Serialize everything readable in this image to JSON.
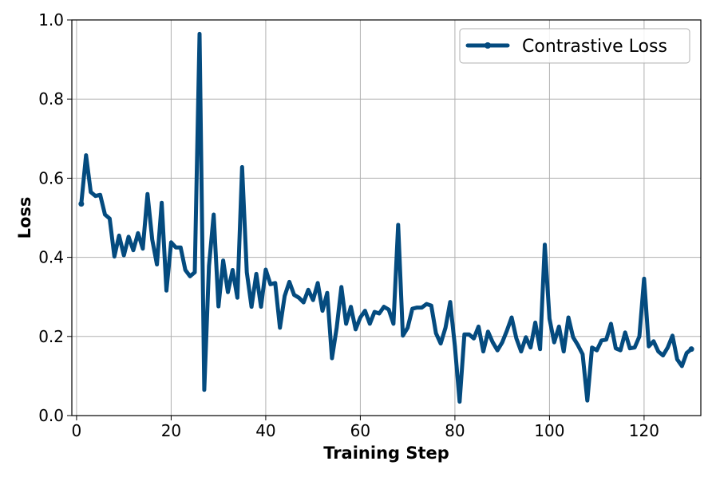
{
  "chart_data": {
    "type": "line",
    "title": "",
    "xlabel": "Training Step",
    "ylabel": "Loss",
    "xlim": [
      -1,
      132
    ],
    "ylim": [
      0,
      1.0
    ],
    "xticks": [
      0,
      20,
      40,
      60,
      80,
      100,
      120
    ],
    "yticks": [
      0.0,
      0.2,
      0.4,
      0.6,
      0.8,
      1.0
    ],
    "xtick_labels": [
      "0",
      "20",
      "40",
      "60",
      "80",
      "100",
      "120"
    ],
    "ytick_labels": [
      "0.0",
      "0.2",
      "0.4",
      "0.6",
      "0.8",
      "1.0"
    ],
    "grid": true,
    "legend_position": "top-right",
    "series": [
      {
        "name": "Contrastive Loss",
        "color": "#044b7f",
        "x": [
          1,
          2,
          3,
          4,
          5,
          6,
          7,
          8,
          9,
          10,
          11,
          12,
          13,
          14,
          15,
          16,
          17,
          18,
          19,
          20,
          21,
          22,
          23,
          24,
          25,
          26,
          27,
          28,
          29,
          30,
          31,
          32,
          33,
          34,
          35,
          36,
          37,
          38,
          39,
          40,
          41,
          42,
          43,
          44,
          45,
          46,
          47,
          48,
          49,
          50,
          51,
          52,
          53,
          54,
          55,
          56,
          57,
          58,
          59,
          60,
          61,
          62,
          63,
          64,
          65,
          66,
          67,
          68,
          69,
          70,
          71,
          72,
          73,
          74,
          75,
          76,
          77,
          78,
          79,
          80,
          81,
          82,
          83,
          84,
          85,
          86,
          87,
          88,
          89,
          90,
          91,
          92,
          93,
          94,
          95,
          96,
          97,
          98,
          99,
          100,
          101,
          102,
          103,
          104,
          105,
          106,
          107,
          108,
          109,
          110,
          111,
          112,
          113,
          114,
          115,
          116,
          117,
          118,
          119,
          120,
          121,
          122,
          123,
          124,
          125,
          126,
          127,
          128,
          129,
          130
        ],
        "y": [
          0.535,
          0.658,
          0.565,
          0.555,
          0.558,
          0.508,
          0.498,
          0.402,
          0.455,
          0.405,
          0.452,
          0.418,
          0.461,
          0.422,
          0.56,
          0.445,
          0.382,
          0.538,
          0.316,
          0.438,
          0.425,
          0.425,
          0.368,
          0.352,
          0.362,
          0.965,
          0.065,
          0.378,
          0.508,
          0.276,
          0.392,
          0.312,
          0.368,
          0.298,
          0.628,
          0.362,
          0.275,
          0.358,
          0.275,
          0.369,
          0.332,
          0.335,
          0.222,
          0.302,
          0.338,
          0.305,
          0.298,
          0.286,
          0.318,
          0.292,
          0.335,
          0.265,
          0.31,
          0.145,
          0.222,
          0.325,
          0.232,
          0.275,
          0.218,
          0.248,
          0.265,
          0.232,
          0.262,
          0.258,
          0.275,
          0.268,
          0.232,
          0.482,
          0.202,
          0.222,
          0.27,
          0.273,
          0.273,
          0.282,
          0.278,
          0.208,
          0.182,
          0.222,
          0.287,
          0.175,
          0.035,
          0.205,
          0.205,
          0.195,
          0.225,
          0.162,
          0.212,
          0.185,
          0.165,
          0.185,
          0.215,
          0.248,
          0.195,
          0.162,
          0.198,
          0.172,
          0.235,
          0.168,
          0.432,
          0.245,
          0.185,
          0.225,
          0.162,
          0.248,
          0.198,
          0.178,
          0.155,
          0.038,
          0.172,
          0.165,
          0.19,
          0.192,
          0.232,
          0.17,
          0.165,
          0.21,
          0.17,
          0.172,
          0.2,
          0.346,
          0.175,
          0.188,
          0.162,
          0.152,
          0.172,
          0.202,
          0.142,
          0.125,
          0.158,
          0.168
        ]
      }
    ]
  }
}
